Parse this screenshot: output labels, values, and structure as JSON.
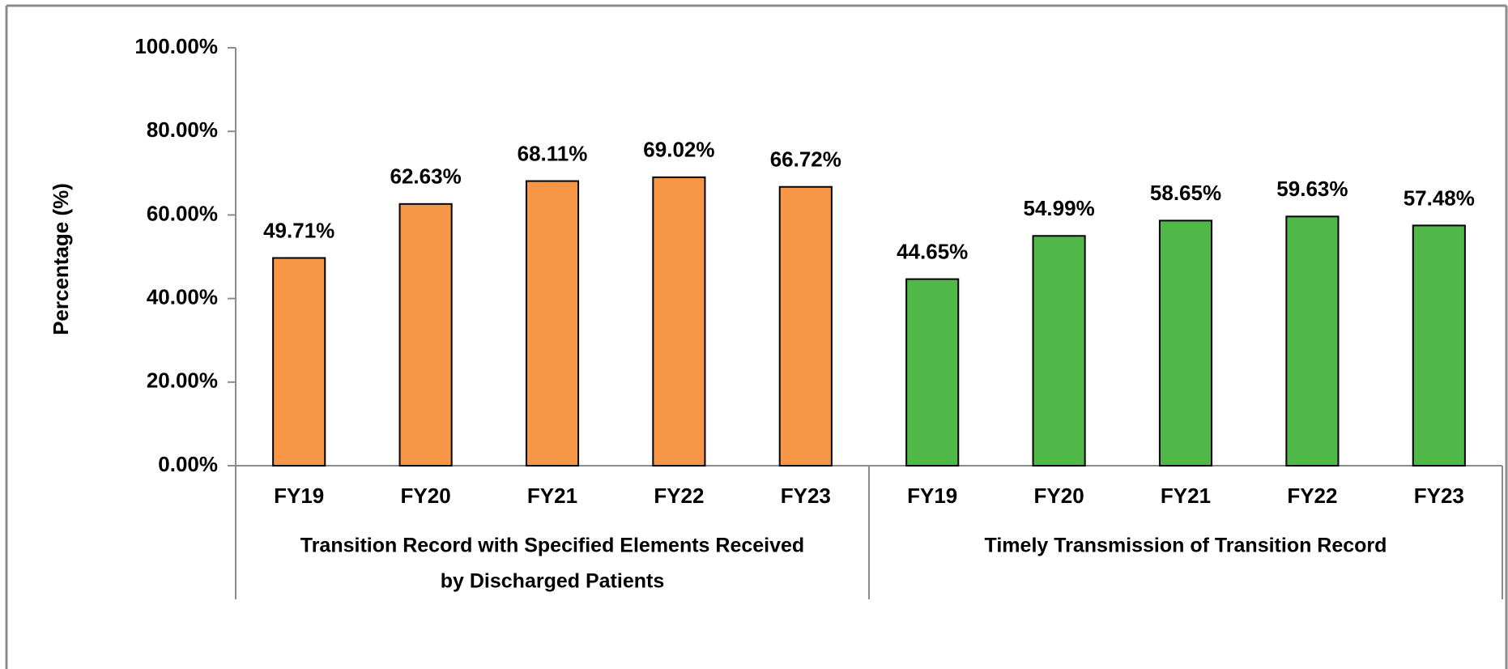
{
  "chart_data": {
    "type": "grouped_bar",
    "y_axis_label": "Percentage (%)",
    "ylim": [
      0,
      100
    ],
    "yticks": [
      {
        "value": 0,
        "label": "0.00%"
      },
      {
        "value": 20,
        "label": "20.00%"
      },
      {
        "value": 40,
        "label": "40.00%"
      },
      {
        "value": 60,
        "label": "60.00%"
      },
      {
        "value": 80,
        "label": "80.00%"
      },
      {
        "value": 100,
        "label": "100.00%"
      }
    ],
    "groups": [
      {
        "name": [
          "Transition Record with Specified Elements Received",
          "by Discharged Patients"
        ],
        "color": "#f79646",
        "categories": [
          "FY19",
          "FY20",
          "FY21",
          "FY22",
          "FY23"
        ],
        "values": [
          49.71,
          62.63,
          68.11,
          69.02,
          66.72
        ],
        "value_labels": [
          "49.71%",
          "62.63%",
          "68.11%",
          "69.02%",
          "66.72%"
        ]
      },
      {
        "name": [
          "Timely Transmission of Transition Record"
        ],
        "color": "#50b848",
        "categories": [
          "FY19",
          "FY20",
          "FY21",
          "FY22",
          "FY23"
        ],
        "values": [
          44.65,
          54.99,
          58.65,
          59.63,
          57.48
        ],
        "value_labels": [
          "44.65%",
          "54.99%",
          "58.65%",
          "59.63%",
          "57.48%"
        ]
      }
    ]
  }
}
